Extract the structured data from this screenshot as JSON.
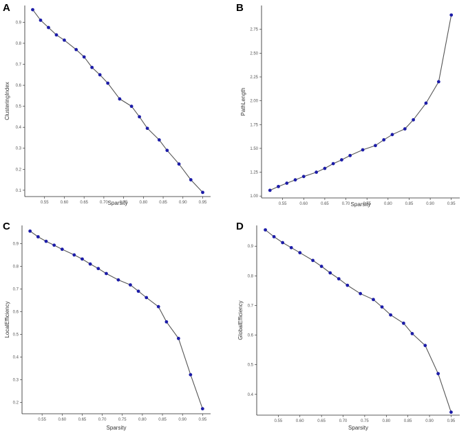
{
  "chart_data": [
    {
      "panel": "A",
      "type": "line",
      "xlabel": "Sparsity",
      "ylabel": "ClusteringIndex",
      "xlim": [
        0.5,
        0.97
      ],
      "ylim": [
        0.07,
        0.98
      ],
      "xticks": [
        0.55,
        0.6,
        0.65,
        0.7,
        0.75,
        0.8,
        0.85,
        0.9,
        0.95
      ],
      "xtick_labels": [
        "0.55",
        "0.60",
        "0.65",
        "0.70",
        "0.75",
        "0.80",
        "0.85",
        "0.90",
        "0.95"
      ],
      "yticks": [
        0.1,
        0.2,
        0.3,
        0.4,
        0.5,
        0.6,
        0.7,
        0.8,
        0.9
      ],
      "ytick_labels": [
        "0.1",
        "0.2",
        "0.3",
        "0.4",
        "0.5",
        "0.6",
        "0.7",
        "0.8",
        "0.9"
      ],
      "x": [
        0.52,
        0.54,
        0.56,
        0.58,
        0.6,
        0.63,
        0.65,
        0.67,
        0.69,
        0.71,
        0.74,
        0.77,
        0.79,
        0.81,
        0.84,
        0.86,
        0.89,
        0.92,
        0.95
      ],
      "y": [
        0.96,
        0.91,
        0.875,
        0.84,
        0.815,
        0.77,
        0.735,
        0.685,
        0.65,
        0.61,
        0.535,
        0.5,
        0.45,
        0.395,
        0.34,
        0.29,
        0.225,
        0.15,
        0.09
      ]
    },
    {
      "panel": "B",
      "type": "line",
      "xlabel": "Sparsity",
      "ylabel": "PathLength",
      "xlim": [
        0.5,
        0.97
      ],
      "ylim": [
        0.98,
        3.0
      ],
      "xticks": [
        0.55,
        0.6,
        0.65,
        0.7,
        0.75,
        0.8,
        0.85,
        0.9,
        0.95
      ],
      "xtick_labels": [
        "0.55",
        "0.60",
        "0.65",
        "0.70",
        "0.75",
        "0.80",
        "0.85",
        "0.90",
        "0.95"
      ],
      "yticks": [
        1.0,
        1.25,
        1.5,
        1.75,
        2.0,
        2.25,
        2.5,
        2.75
      ],
      "ytick_labels": [
        "1.00",
        "1.25",
        "1.50",
        "1.75",
        "2.00",
        "2.25",
        "2.50",
        "2.75"
      ],
      "x": [
        0.52,
        0.54,
        0.56,
        0.58,
        0.6,
        0.63,
        0.65,
        0.67,
        0.69,
        0.71,
        0.74,
        0.77,
        0.79,
        0.81,
        0.84,
        0.86,
        0.89,
        0.92,
        0.95
      ],
      "y": [
        1.06,
        1.1,
        1.135,
        1.17,
        1.205,
        1.25,
        1.29,
        1.34,
        1.38,
        1.425,
        1.485,
        1.53,
        1.59,
        1.645,
        1.705,
        1.8,
        1.975,
        2.2,
        2.9
      ]
    },
    {
      "panel": "C",
      "type": "line",
      "xlabel": "Sparsity",
      "ylabel": "LocalEfficiency",
      "xlim": [
        0.5,
        0.97
      ],
      "ylim": [
        0.15,
        0.98
      ],
      "xticks": [
        0.55,
        0.6,
        0.65,
        0.7,
        0.75,
        0.8,
        0.85,
        0.9,
        0.95
      ],
      "xtick_labels": [
        "0.55",
        "0.60",
        "0.65",
        "0.70",
        "0.75",
        "0.80",
        "0.85",
        "0.90",
        "0.95"
      ],
      "yticks": [
        0.2,
        0.3,
        0.4,
        0.5,
        0.6,
        0.7,
        0.8,
        0.9
      ],
      "ytick_labels": [
        "0.2",
        "0.3",
        "0.4",
        "0.5",
        "0.6",
        "0.7",
        "0.8",
        "0.9"
      ],
      "x": [
        0.52,
        0.54,
        0.56,
        0.58,
        0.6,
        0.63,
        0.65,
        0.67,
        0.69,
        0.71,
        0.74,
        0.77,
        0.79,
        0.81,
        0.84,
        0.86,
        0.89,
        0.92,
        0.95
      ],
      "y": [
        0.955,
        0.93,
        0.91,
        0.893,
        0.875,
        0.85,
        0.832,
        0.81,
        0.79,
        0.768,
        0.74,
        0.718,
        0.69,
        0.662,
        0.622,
        0.555,
        0.482,
        0.322,
        0.172
      ]
    },
    {
      "panel": "D",
      "type": "line",
      "xlabel": "Sparsity",
      "ylabel": "GlobalEfficiency",
      "xlim": [
        0.5,
        0.97
      ],
      "ylim": [
        0.33,
        0.97
      ],
      "xticks": [
        0.55,
        0.6,
        0.65,
        0.7,
        0.75,
        0.8,
        0.85,
        0.9,
        0.95
      ],
      "xtick_labels": [
        "0.55",
        "0.60",
        "0.65",
        "0.70",
        "0.75",
        "0.80",
        "0.85",
        "0.90",
        "0.95"
      ],
      "yticks": [
        0.4,
        0.5,
        0.6,
        0.7,
        0.8,
        0.9
      ],
      "ytick_labels": [
        "0.4",
        "0.5",
        "0.6",
        "0.7",
        "0.8",
        "0.9"
      ],
      "x": [
        0.52,
        0.54,
        0.56,
        0.58,
        0.6,
        0.63,
        0.65,
        0.67,
        0.69,
        0.71,
        0.74,
        0.77,
        0.79,
        0.81,
        0.84,
        0.86,
        0.89,
        0.92,
        0.95
      ],
      "y": [
        0.955,
        0.932,
        0.912,
        0.895,
        0.878,
        0.852,
        0.832,
        0.81,
        0.79,
        0.768,
        0.74,
        0.72,
        0.695,
        0.668,
        0.64,
        0.605,
        0.565,
        0.47,
        0.34
      ]
    }
  ]
}
